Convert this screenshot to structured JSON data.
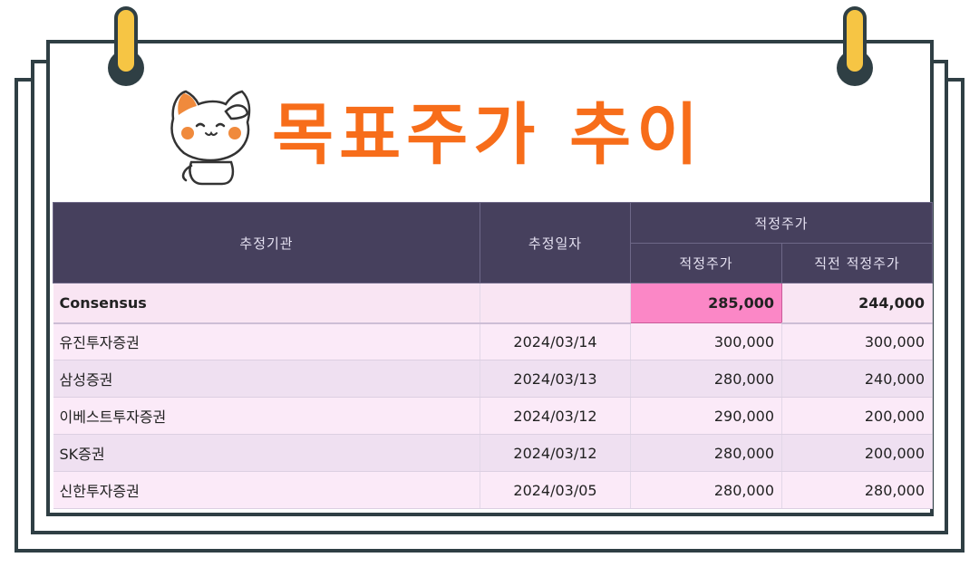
{
  "title": "목표주가 추이",
  "colors": {
    "title": "#f76d1a",
    "header_bg": "#46405d",
    "highlight": "#fb87c6",
    "frame": "#2f3f44",
    "clip": "#f6c544"
  },
  "icons": {
    "mascot": "cat-saluting-icon",
    "clips": "binder-clip-icon"
  },
  "table": {
    "headers": {
      "institution": "추정기관",
      "date": "추정일자",
      "group": "적정주가",
      "target": "적정주가",
      "prev_target": "직전 적정주가"
    },
    "consensus": {
      "institution": "Consensus",
      "date": "",
      "target": "285,000",
      "prev_target": "244,000"
    },
    "rows": [
      {
        "institution": "유진투자증권",
        "date": "2024/03/14",
        "target": "300,000",
        "prev_target": "300,000"
      },
      {
        "institution": "삼성증권",
        "date": "2024/03/13",
        "target": "280,000",
        "prev_target": "240,000"
      },
      {
        "institution": "이베스트투자증권",
        "date": "2024/03/12",
        "target": "290,000",
        "prev_target": "200,000"
      },
      {
        "institution": "SK증권",
        "date": "2024/03/12",
        "target": "280,000",
        "prev_target": "200,000"
      },
      {
        "institution": "신한투자증권",
        "date": "2024/03/05",
        "target": "280,000",
        "prev_target": "280,000"
      }
    ]
  }
}
